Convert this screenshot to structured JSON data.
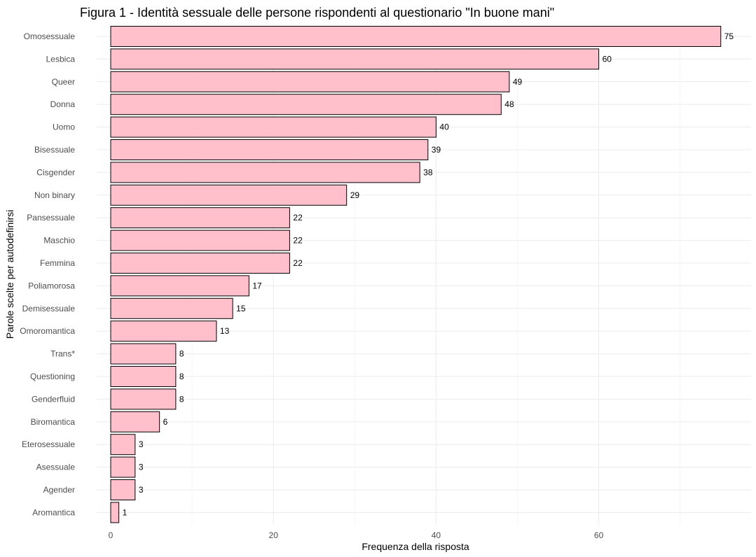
{
  "chart_data": {
    "type": "bar",
    "orientation": "horizontal",
    "title": "Figura 1 - Identità sessuale delle persone rispondenti al questionario \"In buone mani\"",
    "xlabel": "Frequenza della risposta",
    "ylabel": "Parole scelte per autodefinirsi",
    "xlim": [
      0,
      78.7
    ],
    "xticks": [
      0,
      20,
      40,
      60
    ],
    "grid": true,
    "bar_color": "#FFC0CB",
    "bar_edge_color": "#000000",
    "categories": [
      "Omosessuale",
      "Lesbica",
      "Queer",
      "Donna",
      "Uomo",
      "Bisessuale",
      "Cisgender",
      "Non binary",
      "Pansessuale",
      "Maschio",
      "Femmina",
      "Poliamorosa",
      "Demisessuale",
      "Omoromantica",
      "Trans*",
      "Questioning",
      "Genderfluid",
      "Biromantica",
      "Eterosessuale",
      "Asessuale",
      "Agender",
      "Aromantica"
    ],
    "values": [
      75,
      60,
      49,
      48,
      40,
      39,
      38,
      29,
      22,
      22,
      22,
      17,
      15,
      13,
      8,
      8,
      8,
      6,
      3,
      3,
      3,
      1
    ]
  }
}
